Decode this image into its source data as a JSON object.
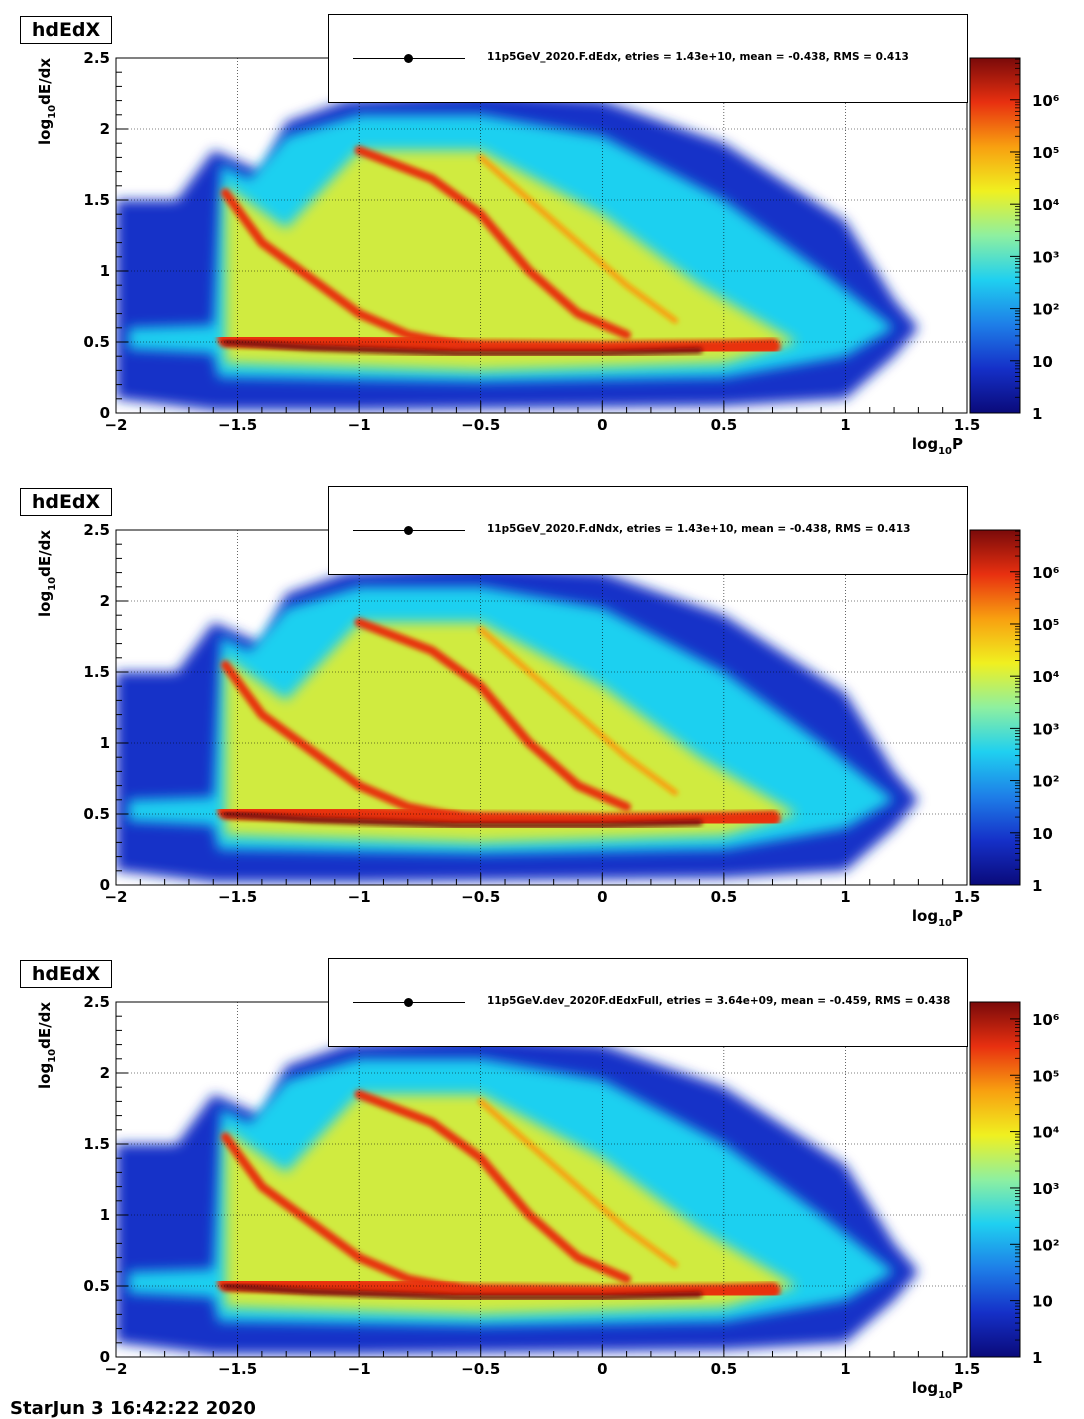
{
  "color_scale": {
    "stops": [
      "#0a0a7a",
      "#1530c8",
      "#1e7fe8",
      "#1fd0f0",
      "#8ef0a0",
      "#f0f020",
      "#f8a010",
      "#e83010",
      "#7a0a0a"
    ],
    "scale": "log"
  },
  "chart_data": [
    {
      "type": "heatmap",
      "title": "hdEdX",
      "legend": "11p5GeV_2020.F.dEdx, etries =   1.43e+10, mean =  -0.438, RMS =   0.413",
      "xlabel": "log10P",
      "ylabel": "log10dE/dx",
      "xlim": [
        -2,
        1.5
      ],
      "ylim": [
        0,
        2.5
      ],
      "xticks": [
        "−2",
        "−1.5",
        "−1",
        "−0.5",
        "0",
        "0.5",
        "1",
        "1.5"
      ],
      "yticks": [
        "0",
        "0.5",
        "1",
        "1.5",
        "2",
        "2.5"
      ],
      "zticks": [
        "1",
        "10",
        "10²",
        "10³",
        "10⁴",
        "10⁵",
        "10⁶"
      ],
      "zmax_decades": 6.8,
      "grid": true
    },
    {
      "type": "heatmap",
      "title": "hdEdX",
      "legend": "11p5GeV_2020.F.dNdx, etries =   1.43e+10, mean =  -0.438, RMS =   0.413",
      "xlabel": "log10P",
      "ylabel": "log10dE/dx",
      "xlim": [
        -2,
        1.5
      ],
      "ylim": [
        0,
        2.5
      ],
      "xticks": [
        "−2",
        "−1.5",
        "−1",
        "−0.5",
        "0",
        "0.5",
        "1",
        "1.5"
      ],
      "yticks": [
        "0",
        "0.5",
        "1",
        "1.5",
        "2",
        "2.5"
      ],
      "zticks": [
        "1",
        "10",
        "10²",
        "10³",
        "10⁴",
        "10⁵",
        "10⁶"
      ],
      "zmax_decades": 6.8,
      "grid": true
    },
    {
      "type": "heatmap",
      "title": "hdEdX",
      "legend": "11p5GeV.dev_2020F.dEdxFull, etries =  3.64e+09, mean =  -0.459, RMS =   0.438",
      "xlabel": "log10P",
      "ylabel": "log10dE/dx",
      "xlim": [
        -2,
        1.5
      ],
      "ylim": [
        0,
        2.5
      ],
      "xticks": [
        "−2",
        "−1.5",
        "−1",
        "−0.5",
        "0",
        "0.5",
        "1",
        "1.5"
      ],
      "yticks": [
        "0",
        "0.5",
        "1",
        "1.5",
        "2",
        "2.5"
      ],
      "zticks": [
        "1",
        "10",
        "10²",
        "10³",
        "10⁴",
        "10⁵",
        "10⁶"
      ],
      "zmax_decades": 6.3,
      "grid": true
    }
  ],
  "footer": "StarJun 3 16:42:22 2020"
}
